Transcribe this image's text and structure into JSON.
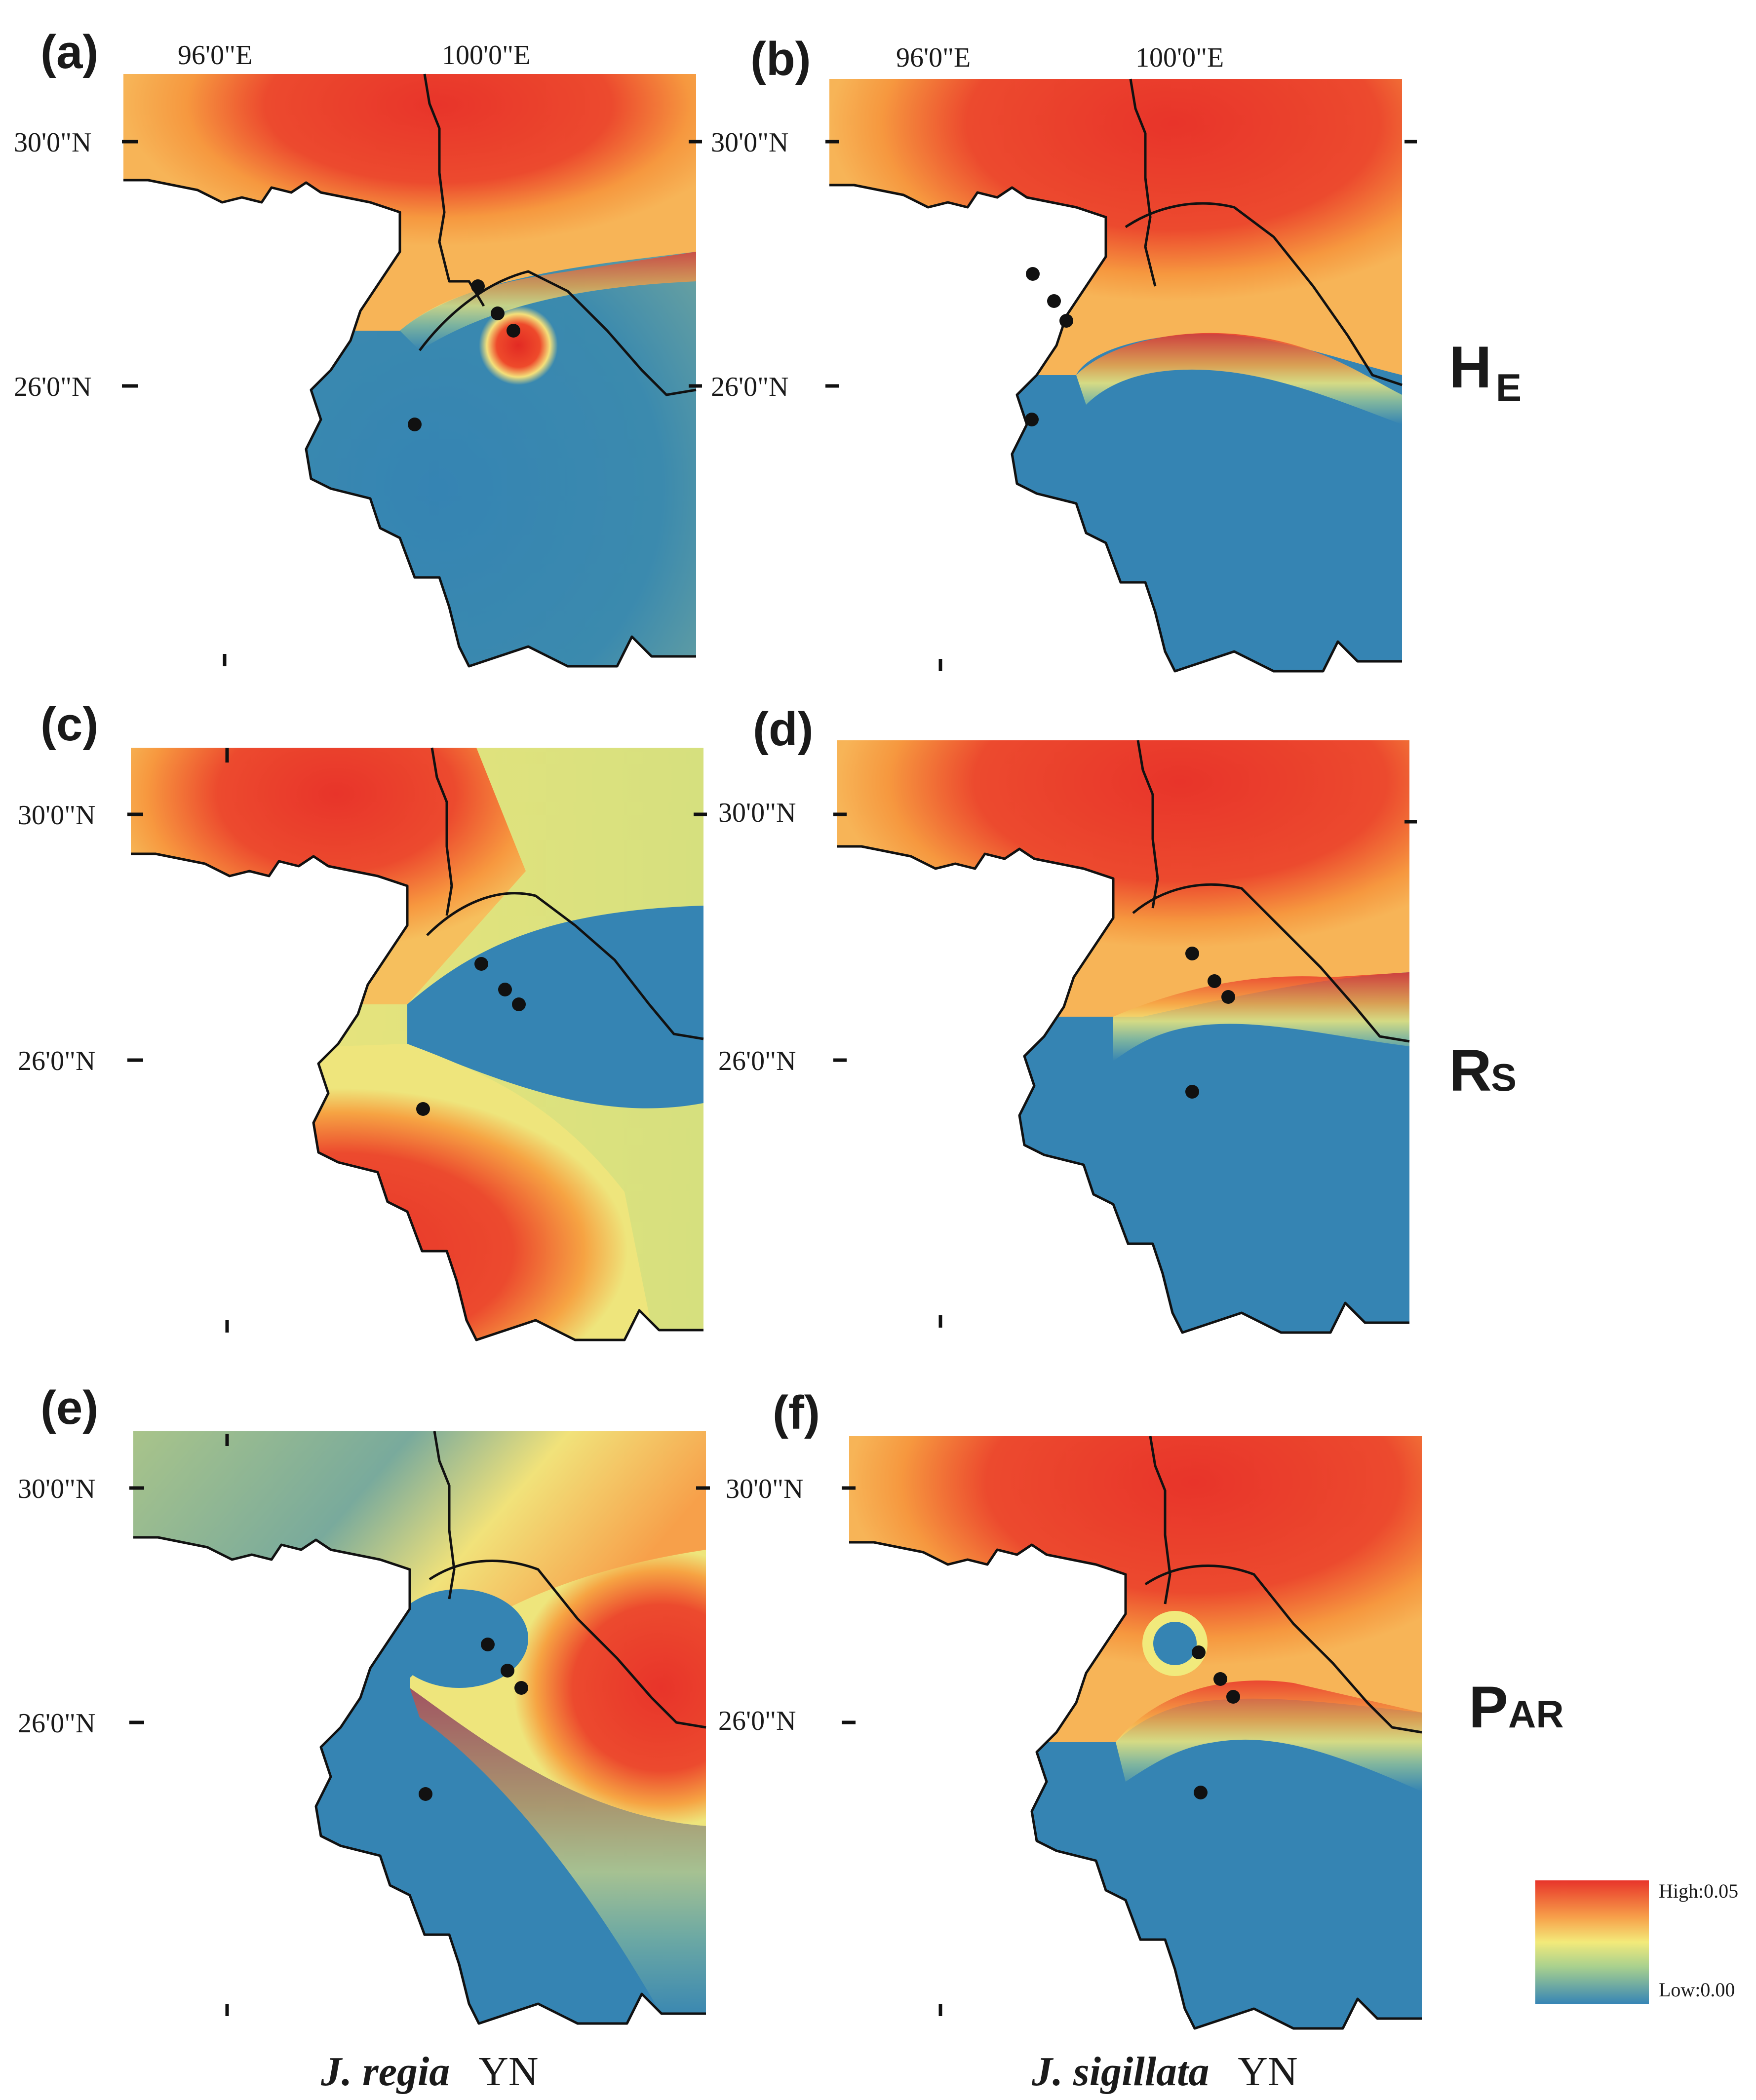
{
  "figure": {
    "panels": [
      {
        "label": "(a)",
        "metric": "HE",
        "species": "J. regia YN",
        "lon_labels": [
          "96'0\"E",
          "100'0\"E"
        ],
        "lat_labels": [
          "30'0\"N",
          "26'0\"N"
        ]
      },
      {
        "label": "(b)",
        "metric": "HE",
        "species": "J. sigillata YN",
        "lon_labels": [
          "96'0\"E",
          "100'0\"E"
        ],
        "lat_labels": [
          "30'0\"N",
          "26'0\"N"
        ]
      },
      {
        "label": "(c)",
        "metric": "RS",
        "species": "J. regia YN",
        "lat_labels": [
          "30'0\"N",
          "26'0\"N"
        ]
      },
      {
        "label": "(d)",
        "metric": "RS",
        "species": "J. sigillata YN",
        "lat_labels": [
          "30'0\"N",
          "26'0\"N"
        ]
      },
      {
        "label": "(e)",
        "metric": "PAR",
        "species": "J. regia YN",
        "lat_labels": [
          "30'0\"N",
          "26'0\"N"
        ]
      },
      {
        "label": "(f)",
        "metric": "PAR",
        "species": "J. sigillata YN",
        "lat_labels": [
          "30'0\"N",
          "26'0\"N"
        ]
      }
    ],
    "row_metrics": [
      {
        "main": "H",
        "sub": "E"
      },
      {
        "main": "R",
        "sub": "S"
      },
      {
        "main": "P",
        "sub": "AR"
      }
    ],
    "columns": [
      {
        "italic": "J. regia",
        "plain": "YN"
      },
      {
        "italic": "J. sigillata",
        "plain": "YN"
      }
    ],
    "legend": {
      "high_label": "High:0.05",
      "low_label": "Low:0.00",
      "colors": [
        "#e8342a",
        "#f7a04a",
        "#f3ea7a",
        "#a9d18e",
        "#3786b5"
      ]
    }
  }
}
